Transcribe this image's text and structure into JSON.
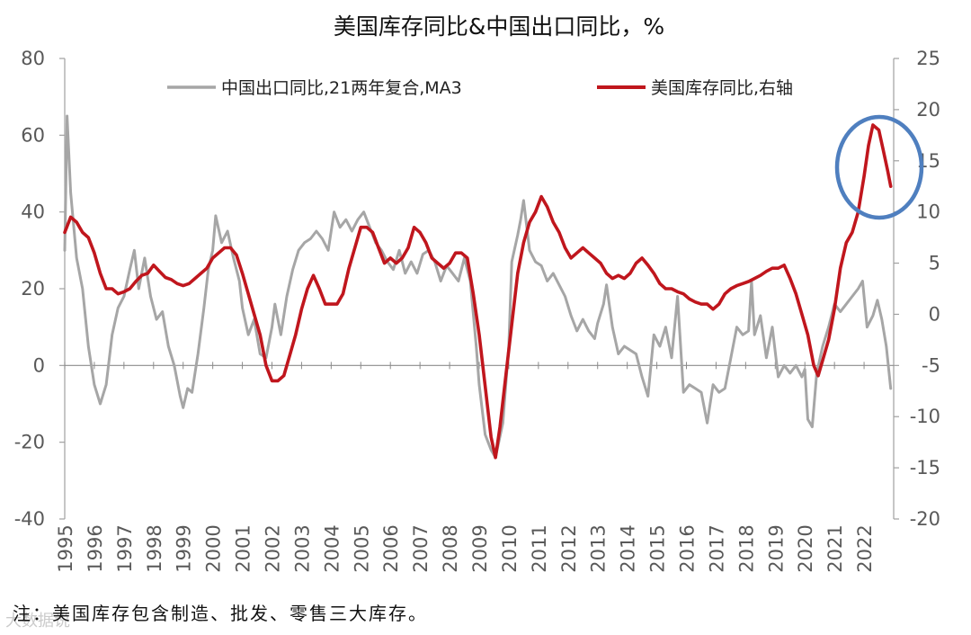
{
  "chart_data": {
    "type": "line",
    "title": "美国库存同比&中国出口同比，%",
    "left_axis": {
      "ylim": [
        -40,
        80
      ],
      "ticks": [
        "80",
        "60",
        "40",
        "20",
        "0",
        "-20",
        "-40"
      ],
      "tick_values": [
        80,
        60,
        40,
        20,
        0,
        -20,
        -40
      ]
    },
    "right_axis": {
      "ylim": [
        -20,
        25
      ],
      "ticks": [
        "25",
        "20",
        "15",
        "10",
        "5",
        "0",
        "-5",
        "-10",
        "-15",
        "-20"
      ],
      "tick_values": [
        25,
        20,
        15,
        10,
        5,
        0,
        -5,
        -10,
        -15,
        -20
      ]
    },
    "x_ticks": [
      "1995",
      "1996",
      "1997",
      "1998",
      "1999",
      "2000",
      "2001",
      "2002",
      "2003",
      "2004",
      "2005",
      "2006",
      "2007",
      "2008",
      "2009",
      "2010",
      "2011",
      "2012",
      "2013",
      "2014",
      "2015",
      "2016",
      "2017",
      "2018",
      "2019",
      "2020",
      "2021",
      "2022"
    ],
    "x_range": [
      1995,
      2023
    ],
    "grid": false,
    "legend_position": "top",
    "annotation": "blue ellipse highlighting the 2022 peak of US inventory YoY",
    "series": [
      {
        "name": "中国出口同比,21两年复合,MA3",
        "axis": "left",
        "color": "#a6a6a6",
        "points": [
          [
            1995.0,
            30
          ],
          [
            1995.08,
            65
          ],
          [
            1995.2,
            45
          ],
          [
            1995.4,
            28
          ],
          [
            1995.6,
            20
          ],
          [
            1995.8,
            5
          ],
          [
            1996.0,
            -5
          ],
          [
            1996.2,
            -10
          ],
          [
            1996.4,
            -5
          ],
          [
            1996.6,
            8
          ],
          [
            1996.8,
            15
          ],
          [
            1997.0,
            18
          ],
          [
            1997.2,
            25
          ],
          [
            1997.35,
            30
          ],
          [
            1997.5,
            20
          ],
          [
            1997.7,
            28
          ],
          [
            1997.9,
            18
          ],
          [
            1998.1,
            12
          ],
          [
            1998.3,
            14
          ],
          [
            1998.5,
            5
          ],
          [
            1998.7,
            0
          ],
          [
            1998.9,
            -8
          ],
          [
            1999.0,
            -11
          ],
          [
            1999.15,
            -6
          ],
          [
            1999.3,
            -7
          ],
          [
            1999.5,
            3
          ],
          [
            1999.7,
            15
          ],
          [
            1999.85,
            25
          ],
          [
            2000.0,
            30
          ],
          [
            2000.1,
            39
          ],
          [
            2000.3,
            32
          ],
          [
            2000.5,
            35
          ],
          [
            2000.7,
            28
          ],
          [
            2000.9,
            22
          ],
          [
            2001.0,
            15
          ],
          [
            2001.2,
            8
          ],
          [
            2001.4,
            12
          ],
          [
            2001.6,
            3
          ],
          [
            2001.8,
            2
          ],
          [
            2002.0,
            10
          ],
          [
            2002.1,
            16
          ],
          [
            2002.3,
            8
          ],
          [
            2002.5,
            18
          ],
          [
            2002.7,
            25
          ],
          [
            2002.9,
            30
          ],
          [
            2003.1,
            32
          ],
          [
            2003.3,
            33
          ],
          [
            2003.5,
            35
          ],
          [
            2003.7,
            33
          ],
          [
            2003.9,
            30
          ],
          [
            2004.1,
            40
          ],
          [
            2004.3,
            36
          ],
          [
            2004.5,
            38
          ],
          [
            2004.7,
            35
          ],
          [
            2004.9,
            38
          ],
          [
            2005.1,
            40
          ],
          [
            2005.3,
            36
          ],
          [
            2005.5,
            32
          ],
          [
            2005.7,
            30
          ],
          [
            2005.9,
            27
          ],
          [
            2006.1,
            25
          ],
          [
            2006.3,
            30
          ],
          [
            2006.5,
            24
          ],
          [
            2006.7,
            27
          ],
          [
            2006.9,
            24
          ],
          [
            2007.1,
            29
          ],
          [
            2007.3,
            30
          ],
          [
            2007.5,
            27
          ],
          [
            2007.7,
            22
          ],
          [
            2007.9,
            26
          ],
          [
            2008.1,
            24
          ],
          [
            2008.3,
            22
          ],
          [
            2008.5,
            28
          ],
          [
            2008.7,
            22
          ],
          [
            2008.9,
            5
          ],
          [
            2009.0,
            -5
          ],
          [
            2009.2,
            -18
          ],
          [
            2009.4,
            -22
          ],
          [
            2009.55,
            -24
          ],
          [
            2009.8,
            -15
          ],
          [
            2010.0,
            5
          ],
          [
            2010.1,
            27
          ],
          [
            2010.3,
            34
          ],
          [
            2010.4,
            38
          ],
          [
            2010.5,
            43
          ],
          [
            2010.7,
            30
          ],
          [
            2010.9,
            27
          ],
          [
            2011.1,
            26
          ],
          [
            2011.3,
            22
          ],
          [
            2011.5,
            24
          ],
          [
            2011.7,
            21
          ],
          [
            2011.9,
            18
          ],
          [
            2012.1,
            13
          ],
          [
            2012.3,
            9
          ],
          [
            2012.5,
            12
          ],
          [
            2012.7,
            9
          ],
          [
            2012.9,
            7
          ],
          [
            2013.0,
            11
          ],
          [
            2013.2,
            16
          ],
          [
            2013.3,
            21
          ],
          [
            2013.5,
            10
          ],
          [
            2013.7,
            3
          ],
          [
            2013.9,
            5
          ],
          [
            2014.1,
            4
          ],
          [
            2014.3,
            3
          ],
          [
            2014.5,
            -3
          ],
          [
            2014.7,
            -8
          ],
          [
            2014.9,
            8
          ],
          [
            2015.1,
            5
          ],
          [
            2015.3,
            10
          ],
          [
            2015.5,
            2
          ],
          [
            2015.7,
            18
          ],
          [
            2015.9,
            -7
          ],
          [
            2016.1,
            -5
          ],
          [
            2016.3,
            -6
          ],
          [
            2016.5,
            -7
          ],
          [
            2016.7,
            -15
          ],
          [
            2016.9,
            -5
          ],
          [
            2017.1,
            -7
          ],
          [
            2017.3,
            -6
          ],
          [
            2017.5,
            2
          ],
          [
            2017.7,
            10
          ],
          [
            2017.9,
            8
          ],
          [
            2018.1,
            9
          ],
          [
            2018.2,
            22
          ],
          [
            2018.3,
            8
          ],
          [
            2018.5,
            13
          ],
          [
            2018.7,
            2
          ],
          [
            2018.9,
            10
          ],
          [
            2019.1,
            -3
          ],
          [
            2019.3,
            0
          ],
          [
            2019.5,
            -2
          ],
          [
            2019.7,
            0
          ],
          [
            2019.9,
            -3
          ],
          [
            2020.0,
            -1
          ],
          [
            2020.1,
            -14
          ],
          [
            2020.25,
            -16
          ],
          [
            2020.4,
            -2
          ],
          [
            2020.6,
            5
          ],
          [
            2020.8,
            10
          ],
          [
            2021.0,
            16
          ],
          [
            2021.2,
            14
          ],
          [
            2021.4,
            16
          ],
          [
            2021.6,
            18
          ],
          [
            2021.8,
            20
          ],
          [
            2021.95,
            22
          ],
          [
            2022.1,
            10
          ],
          [
            2022.3,
            13
          ],
          [
            2022.45,
            17
          ],
          [
            2022.6,
            12
          ],
          [
            2022.75,
            5
          ],
          [
            2022.9,
            -6
          ]
        ]
      },
      {
        "name": "美国库存同比,右轴",
        "axis": "right",
        "color": "#c0161d",
        "points": [
          [
            1995.0,
            8
          ],
          [
            1995.2,
            9.5
          ],
          [
            1995.4,
            9
          ],
          [
            1995.6,
            8
          ],
          [
            1995.8,
            7.5
          ],
          [
            1996.0,
            6
          ],
          [
            1996.2,
            4
          ],
          [
            1996.4,
            2.5
          ],
          [
            1996.6,
            2.5
          ],
          [
            1996.8,
            2
          ],
          [
            1997.0,
            2.2
          ],
          [
            1997.2,
            2.5
          ],
          [
            1997.4,
            3.2
          ],
          [
            1997.6,
            3.8
          ],
          [
            1997.8,
            4
          ],
          [
            1998.0,
            4.8
          ],
          [
            1998.2,
            4.2
          ],
          [
            1998.4,
            3.6
          ],
          [
            1998.6,
            3.4
          ],
          [
            1998.8,
            3
          ],
          [
            1999.0,
            2.8
          ],
          [
            1999.2,
            3
          ],
          [
            1999.4,
            3.5
          ],
          [
            1999.6,
            4
          ],
          [
            1999.8,
            4.5
          ],
          [
            2000.0,
            5.5
          ],
          [
            2000.2,
            6
          ],
          [
            2000.4,
            6.5
          ],
          [
            2000.6,
            6.5
          ],
          [
            2000.8,
            5.8
          ],
          [
            2001.0,
            4
          ],
          [
            2001.2,
            2
          ],
          [
            2001.4,
            0
          ],
          [
            2001.6,
            -2
          ],
          [
            2001.8,
            -5
          ],
          [
            2002.0,
            -6.5
          ],
          [
            2002.2,
            -6.5
          ],
          [
            2002.4,
            -6
          ],
          [
            2002.6,
            -4
          ],
          [
            2002.8,
            -2
          ],
          [
            2003.0,
            0.5
          ],
          [
            2003.2,
            2.5
          ],
          [
            2003.4,
            3.8
          ],
          [
            2003.6,
            2.5
          ],
          [
            2003.8,
            1
          ],
          [
            2004.0,
            1
          ],
          [
            2004.2,
            1
          ],
          [
            2004.4,
            2
          ],
          [
            2004.6,
            4.5
          ],
          [
            2004.8,
            6.5
          ],
          [
            2005.0,
            8.5
          ],
          [
            2005.2,
            8.5
          ],
          [
            2005.4,
            8
          ],
          [
            2005.6,
            6.5
          ],
          [
            2005.8,
            5
          ],
          [
            2006.0,
            5.5
          ],
          [
            2006.2,
            5
          ],
          [
            2006.4,
            5.5
          ],
          [
            2006.6,
            6.5
          ],
          [
            2006.8,
            8.5
          ],
          [
            2007.0,
            8
          ],
          [
            2007.2,
            7
          ],
          [
            2007.4,
            5.5
          ],
          [
            2007.6,
            5
          ],
          [
            2007.8,
            4.5
          ],
          [
            2008.0,
            5
          ],
          [
            2008.2,
            6
          ],
          [
            2008.4,
            6
          ],
          [
            2008.6,
            5.5
          ],
          [
            2008.8,
            2
          ],
          [
            2009.0,
            -2
          ],
          [
            2009.2,
            -7
          ],
          [
            2009.4,
            -12
          ],
          [
            2009.55,
            -14
          ],
          [
            2009.7,
            -11
          ],
          [
            2009.9,
            -6
          ],
          [
            2010.1,
            -1
          ],
          [
            2010.3,
            4
          ],
          [
            2010.5,
            7
          ],
          [
            2010.7,
            9
          ],
          [
            2010.9,
            10
          ],
          [
            2011.1,
            11.5
          ],
          [
            2011.3,
            10.5
          ],
          [
            2011.5,
            9
          ],
          [
            2011.7,
            8
          ],
          [
            2011.9,
            6.5
          ],
          [
            2012.1,
            5.5
          ],
          [
            2012.3,
            6
          ],
          [
            2012.5,
            6.5
          ],
          [
            2012.7,
            6
          ],
          [
            2012.9,
            5.5
          ],
          [
            2013.1,
            5
          ],
          [
            2013.3,
            4
          ],
          [
            2013.5,
            3.5
          ],
          [
            2013.7,
            3.8
          ],
          [
            2013.9,
            3.5
          ],
          [
            2014.1,
            4
          ],
          [
            2014.3,
            5
          ],
          [
            2014.5,
            5.5
          ],
          [
            2014.7,
            4.8
          ],
          [
            2014.9,
            4
          ],
          [
            2015.1,
            3
          ],
          [
            2015.3,
            2.5
          ],
          [
            2015.5,
            2.5
          ],
          [
            2015.7,
            2.2
          ],
          [
            2015.9,
            2
          ],
          [
            2016.1,
            1.5
          ],
          [
            2016.3,
            1.2
          ],
          [
            2016.5,
            1
          ],
          [
            2016.7,
            1
          ],
          [
            2016.9,
            0.5
          ],
          [
            2017.1,
            1
          ],
          [
            2017.3,
            2
          ],
          [
            2017.5,
            2.5
          ],
          [
            2017.7,
            2.8
          ],
          [
            2017.9,
            3
          ],
          [
            2018.1,
            3.2
          ],
          [
            2018.3,
            3.5
          ],
          [
            2018.5,
            3.8
          ],
          [
            2018.7,
            4.2
          ],
          [
            2018.9,
            4.5
          ],
          [
            2019.1,
            4.5
          ],
          [
            2019.3,
            4.8
          ],
          [
            2019.5,
            3.5
          ],
          [
            2019.7,
            2
          ],
          [
            2019.9,
            0
          ],
          [
            2020.1,
            -2
          ],
          [
            2020.3,
            -5
          ],
          [
            2020.45,
            -6
          ],
          [
            2020.6,
            -4.5
          ],
          [
            2020.8,
            -2.5
          ],
          [
            2021.0,
            0.5
          ],
          [
            2021.2,
            4.5
          ],
          [
            2021.4,
            7
          ],
          [
            2021.6,
            8
          ],
          [
            2021.8,
            10
          ],
          [
            2022.0,
            13.5
          ],
          [
            2022.15,
            16.5
          ],
          [
            2022.3,
            18.5
          ],
          [
            2022.5,
            18
          ],
          [
            2022.65,
            16
          ],
          [
            2022.8,
            14
          ],
          [
            2022.9,
            12.5
          ]
        ]
      }
    ],
    "legend": [
      {
        "label": "中国出口同比,21两年复合,MA3",
        "color": "#a6a6a6"
      },
      {
        "label": "美国库存同比,右轴",
        "color": "#c0161d"
      }
    ]
  },
  "note": "注：美国库存包含制造、批发、零售三大库存。",
  "watermark": "大数据说"
}
